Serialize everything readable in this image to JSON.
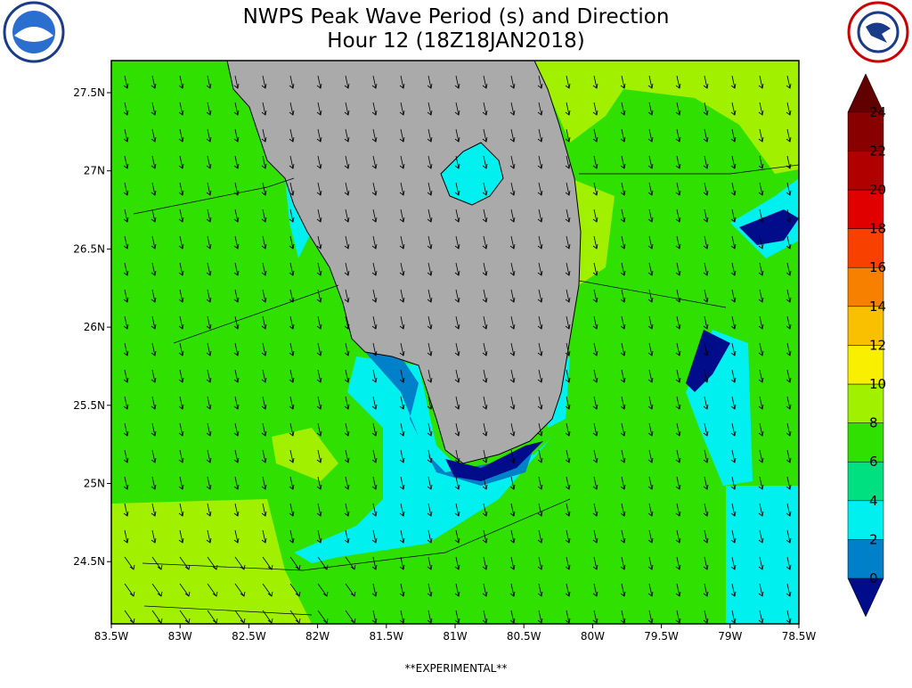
{
  "title": [
    "NWPS Peak Wave Period (s) and Direction",
    "Hour 12 (18Z18JAN2018)"
  ],
  "lat_labels": [
    "27.5N",
    "27N",
    "26.5N",
    "26N",
    "25.5N",
    "25N",
    "24.5N"
  ],
  "lon_labels": [
    "83.5W",
    "83W",
    "82.5W",
    "82W",
    "81.5W",
    "81W",
    "80.5W",
    "80W",
    "79.5W",
    "79W",
    "78.5W"
  ],
  "colorbar": {
    "ticks": [
      0,
      2,
      4,
      6,
      8,
      10,
      12,
      14,
      16,
      18,
      20,
      22,
      24
    ],
    "colors": [
      "#000c8a",
      "#0080c8",
      "#00f0f0",
      "#00e080",
      "#30e000",
      "#a0f000",
      "#f8f000",
      "#f8c000",
      "#f88000",
      "#f84000",
      "#e00000",
      "#b00000",
      "#880000",
      "#600000"
    ]
  },
  "footer": "**EXPERIMENTAL**"
}
